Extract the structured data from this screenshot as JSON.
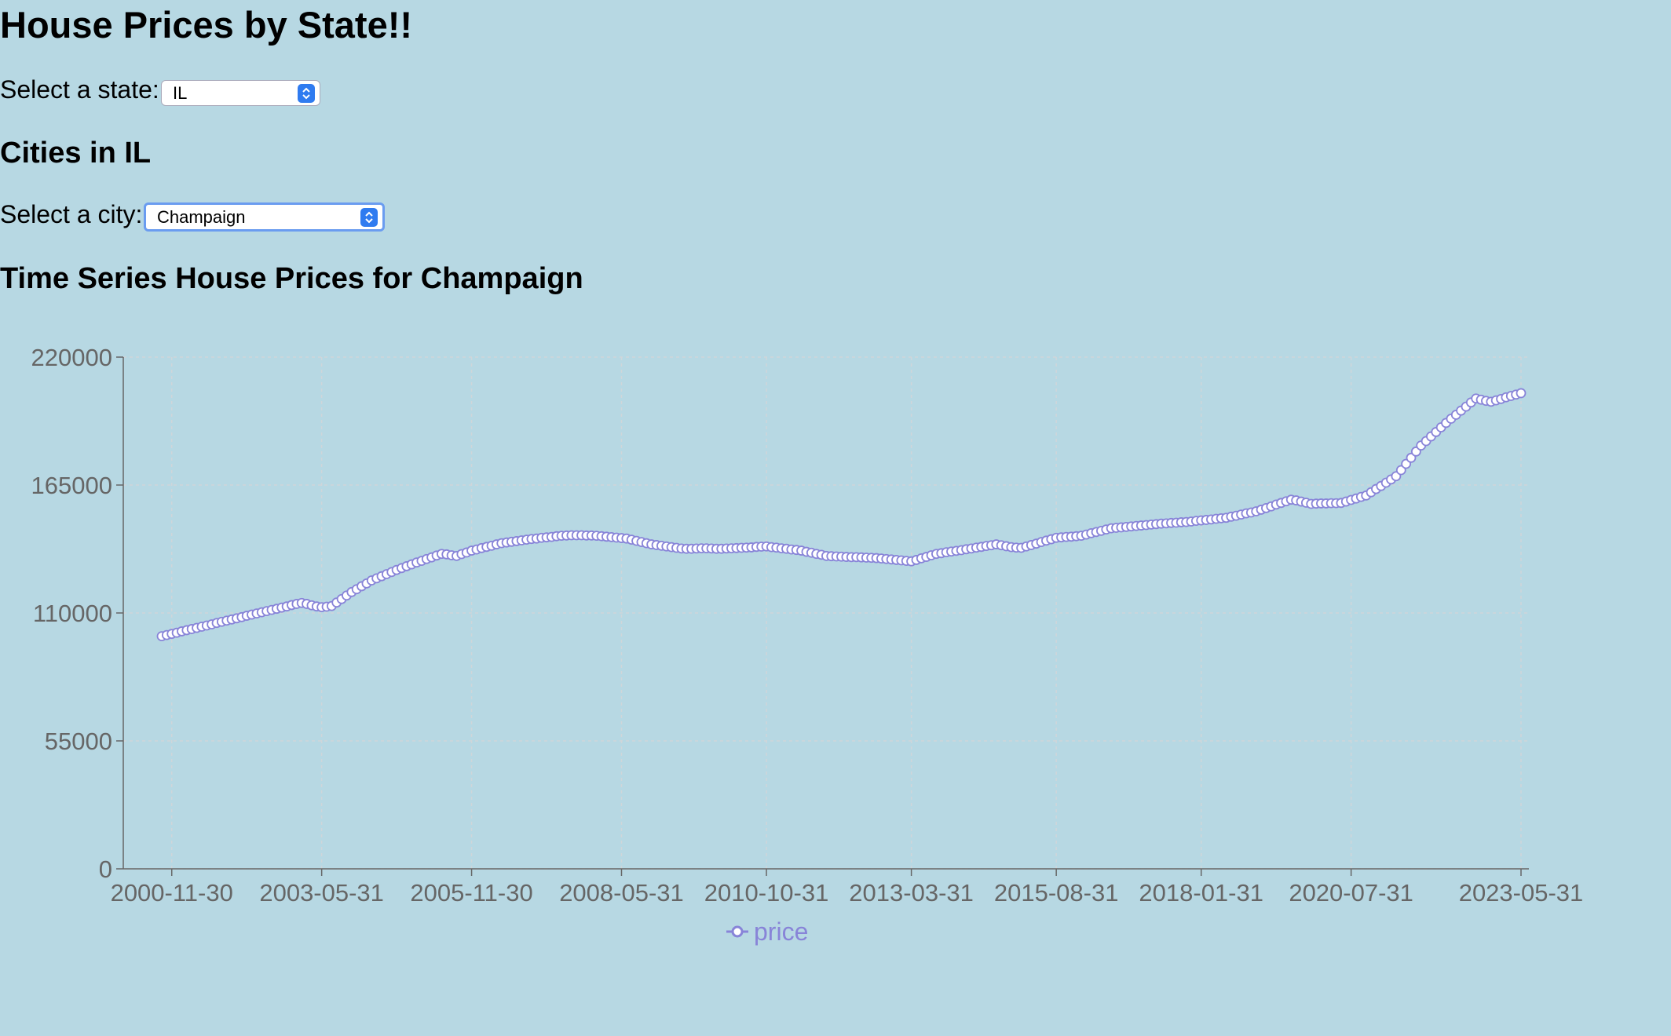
{
  "header": {
    "title": "House Prices by State!!"
  },
  "state_select": {
    "label": "Select a state:",
    "value": "IL"
  },
  "cities_heading": "Cities in IL",
  "city_select": {
    "label": "Select a city:",
    "value": "Champaign"
  },
  "chart_heading": "Time Series House Prices for Champaign",
  "chart_data": {
    "type": "line",
    "color": "#8884d8",
    "grid": true,
    "legend": "bottom",
    "x": [
      "2000-09-30",
      "2000-10-31",
      "2000-11-30",
      "2000-12-31",
      "2001-01-31",
      "2001-02-28",
      "2001-03-31",
      "2001-04-30",
      "2001-05-31",
      "2001-06-30",
      "2001-07-31",
      "2001-08-31",
      "2001-09-30",
      "2001-10-31",
      "2001-11-30",
      "2001-12-31",
      "2002-01-31",
      "2002-02-28",
      "2002-03-31",
      "2002-04-30",
      "2002-05-31",
      "2002-06-30",
      "2002-07-31",
      "2002-08-31",
      "2002-09-30",
      "2002-10-31",
      "2002-11-30",
      "2002-12-31",
      "2003-01-31",
      "2003-02-28",
      "2003-03-31",
      "2003-04-30",
      "2003-05-31",
      "2003-06-30",
      "2003-07-31",
      "2003-08-31",
      "2003-09-30",
      "2003-10-31",
      "2003-11-30",
      "2003-12-31",
      "2004-01-31",
      "2004-02-29",
      "2004-03-31",
      "2004-04-30",
      "2004-05-31",
      "2004-06-30",
      "2004-07-31",
      "2004-08-31",
      "2004-09-30",
      "2004-10-31",
      "2004-11-30",
      "2004-12-31",
      "2005-01-31",
      "2005-02-28",
      "2005-03-31",
      "2005-04-30",
      "2005-05-31",
      "2005-06-30",
      "2005-07-31",
      "2005-08-31",
      "2005-09-30",
      "2005-10-31",
      "2005-11-30",
      "2005-12-31",
      "2006-01-31",
      "2006-02-28",
      "2006-03-31",
      "2006-04-30",
      "2006-05-31",
      "2006-06-30",
      "2006-07-31",
      "2006-08-31",
      "2006-09-30",
      "2006-10-31",
      "2006-11-30",
      "2006-12-31",
      "2007-01-31",
      "2007-02-28",
      "2007-03-31",
      "2007-04-30",
      "2007-05-31",
      "2007-06-30",
      "2007-07-31",
      "2007-08-31",
      "2007-09-30",
      "2007-10-31",
      "2007-11-30",
      "2007-12-31",
      "2008-01-31",
      "2008-02-29",
      "2008-03-31",
      "2008-04-30",
      "2008-05-31",
      "2008-06-30",
      "2008-07-31",
      "2008-08-31",
      "2008-09-30",
      "2008-10-31",
      "2008-11-30",
      "2008-12-31",
      "2009-01-31",
      "2009-02-28",
      "2009-03-31",
      "2009-04-30",
      "2009-05-31",
      "2009-06-30",
      "2009-07-31",
      "2009-08-31",
      "2009-09-30",
      "2009-10-31",
      "2009-11-30",
      "2009-12-31",
      "2010-01-31",
      "2010-02-28",
      "2010-03-31",
      "2010-04-30",
      "2010-05-31",
      "2010-06-30",
      "2010-07-31",
      "2010-08-31",
      "2010-09-30",
      "2010-10-31",
      "2010-11-30",
      "2010-12-31",
      "2011-01-31",
      "2011-02-28",
      "2011-03-31",
      "2011-04-30",
      "2011-05-31",
      "2011-06-30",
      "2011-07-31",
      "2011-08-31",
      "2011-09-30",
      "2011-10-31",
      "2011-11-30",
      "2011-12-31",
      "2012-01-31",
      "2012-02-29",
      "2012-03-31",
      "2012-04-30",
      "2012-05-31",
      "2012-06-30",
      "2012-07-31",
      "2012-08-31",
      "2012-09-30",
      "2012-10-31",
      "2012-11-30",
      "2012-12-31",
      "2013-01-31",
      "2013-02-28",
      "2013-03-31",
      "2013-04-30",
      "2013-05-31",
      "2013-06-30",
      "2013-07-31",
      "2013-08-31",
      "2013-09-30",
      "2013-10-31",
      "2013-11-30",
      "2013-12-31",
      "2014-01-31",
      "2014-02-28",
      "2014-03-31",
      "2014-04-30",
      "2014-05-31",
      "2014-06-30",
      "2014-07-31",
      "2014-08-31",
      "2014-09-30",
      "2014-10-31",
      "2014-11-30",
      "2014-12-31",
      "2015-01-31",
      "2015-02-28",
      "2015-03-31",
      "2015-04-30",
      "2015-05-31",
      "2015-06-30",
      "2015-07-31",
      "2015-08-31",
      "2015-09-30",
      "2015-10-31",
      "2015-11-30",
      "2015-12-31",
      "2016-01-31",
      "2016-02-29",
      "2016-03-31",
      "2016-04-30",
      "2016-05-31",
      "2016-06-30",
      "2016-07-31",
      "2016-08-31",
      "2016-09-30",
      "2016-10-31",
      "2016-11-30",
      "2016-12-31",
      "2017-01-31",
      "2017-02-28",
      "2017-03-31",
      "2017-04-30",
      "2017-05-31",
      "2017-06-30",
      "2017-07-31",
      "2017-08-31",
      "2017-09-30",
      "2017-10-31",
      "2017-11-30",
      "2017-12-31",
      "2018-01-31",
      "2018-02-28",
      "2018-03-31",
      "2018-04-30",
      "2018-05-31",
      "2018-06-30",
      "2018-07-31",
      "2018-08-31",
      "2018-09-30",
      "2018-10-31",
      "2018-11-30",
      "2018-12-31",
      "2019-01-31",
      "2019-02-28",
      "2019-03-31",
      "2019-04-30",
      "2019-05-31",
      "2019-06-30",
      "2019-07-31",
      "2019-08-31",
      "2019-09-30",
      "2019-10-31",
      "2019-11-30",
      "2019-12-31",
      "2020-01-31",
      "2020-02-29",
      "2020-03-31",
      "2020-04-30",
      "2020-05-31",
      "2020-06-30",
      "2020-07-31",
      "2020-08-31",
      "2020-09-30",
      "2020-10-31",
      "2020-11-30",
      "2020-12-31",
      "2021-01-31",
      "2021-02-28",
      "2021-03-31",
      "2021-04-30",
      "2021-05-31",
      "2021-06-30",
      "2021-07-31",
      "2021-08-31",
      "2021-09-30",
      "2021-10-31",
      "2021-11-30",
      "2021-12-31",
      "2022-01-31",
      "2022-02-28",
      "2022-03-31",
      "2022-04-30",
      "2022-05-31",
      "2022-06-30",
      "2022-07-31",
      "2022-08-31",
      "2022-09-30",
      "2022-10-31",
      "2022-11-30",
      "2022-12-31",
      "2023-01-31",
      "2023-02-28",
      "2023-03-31",
      "2023-04-30",
      "2023-05-31"
    ],
    "series": [
      {
        "name": "price",
        "color": "#8884d8",
        "values": [
          100000,
          100500,
          101000,
          101500,
          102100,
          102600,
          103100,
          103600,
          104100,
          104600,
          105100,
          105700,
          106200,
          106700,
          107200,
          107700,
          108200,
          108800,
          109300,
          109800,
          110300,
          110800,
          111300,
          111800,
          112300,
          112800,
          113400,
          113900,
          114300,
          113900,
          113300,
          112800,
          112500,
          112700,
          113000,
          114500,
          116000,
          117500,
          119000,
          120200,
          121500,
          122700,
          124000,
          124900,
          125800,
          126700,
          127600,
          128500,
          129300,
          130100,
          130900,
          131700,
          132400,
          133200,
          133900,
          134700,
          135400,
          135200,
          134800,
          134500,
          135300,
          136000,
          136800,
          137300,
          137900,
          138400,
          138900,
          139500,
          140000,
          140300,
          140600,
          140900,
          141200,
          141500,
          141800,
          142000,
          142300,
          142500,
          142700,
          143000,
          143200,
          143300,
          143400,
          143400,
          143400,
          143300,
          143300,
          143200,
          143000,
          142800,
          142600,
          142400,
          142200,
          142000,
          141500,
          141000,
          140500,
          140000,
          139500,
          139200,
          138900,
          138600,
          138300,
          138000,
          137700,
          137600,
          137600,
          137700,
          137800,
          137800,
          137700,
          137600,
          137600,
          137700,
          137800,
          137900,
          138000,
          138100,
          138200,
          138400,
          138500,
          138600,
          138300,
          138100,
          137800,
          137600,
          137300,
          137100,
          136800,
          136300,
          135900,
          135400,
          135000,
          134500,
          134400,
          134300,
          134200,
          134100,
          134000,
          134000,
          133900,
          133800,
          133700,
          133600,
          133400,
          133200,
          133000,
          132800,
          132600,
          132400,
          132200,
          132800,
          133500,
          134100,
          134800,
          135400,
          135700,
          136100,
          136400,
          136700,
          137000,
          137400,
          137700,
          138100,
          138400,
          138800,
          139100,
          139500,
          139100,
          138700,
          138300,
          138100,
          138000,
          138600,
          139200,
          139800,
          140500,
          141100,
          141700,
          142300,
          142500,
          142700,
          142800,
          143000,
          143200,
          143700,
          144300,
          144800,
          145300,
          145900,
          146400,
          146600,
          146800,
          147000,
          147200,
          147400,
          147600,
          147800,
          148000,
          148200,
          148400,
          148500,
          148700,
          148800,
          149000,
          149100,
          149300,
          149600,
          149800,
          150000,
          150200,
          150500,
          150700,
          150900,
          151400,
          151800,
          152300,
          152800,
          153200,
          153700,
          154400,
          155100,
          155800,
          156600,
          157300,
          158000,
          158700,
          158400,
          157900,
          157400,
          156900,
          157000,
          157100,
          157100,
          157200,
          157200,
          157300,
          157900,
          158600,
          159200,
          159900,
          160500,
          161900,
          163300,
          164600,
          166000,
          167400,
          168800,
          171400,
          174100,
          176700,
          179400,
          182000,
          183900,
          185900,
          187800,
          189800,
          191700,
          193500,
          195200,
          197000,
          198700,
          200500,
          202200,
          201700,
          201200,
          200800,
          201400,
          202000,
          202700,
          203300,
          203900,
          204500
        ]
      }
    ],
    "ylim": [
      0,
      220000
    ],
    "yticks": [
      0,
      55000,
      110000,
      165000,
      220000
    ],
    "xticks": [
      "2000-11-30",
      "2003-05-31",
      "2005-11-30",
      "2008-05-31",
      "2010-10-31",
      "2013-03-31",
      "2015-08-31",
      "2018-01-31",
      "2020-07-31",
      "2023-05-31"
    ]
  }
}
